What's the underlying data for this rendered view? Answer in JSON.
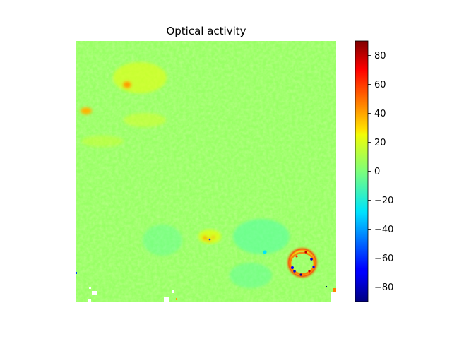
{
  "chart_data": {
    "type": "heatmap",
    "title": "Optical activity",
    "xlabel": "",
    "ylabel": "",
    "axes_visible": false,
    "colormap": "jet",
    "colorbar": {
      "vmin": -90,
      "vmax": 90,
      "ticks": [
        80,
        60,
        40,
        20,
        0,
        -20,
        -40,
        -60,
        -80
      ],
      "tick_labels": [
        "80",
        "60",
        "40",
        "20",
        "0",
        "−20",
        "−40",
        "−60",
        "−80"
      ]
    },
    "background_value_range": [
      0,
      20
    ],
    "features": [
      {
        "name": "upper-left band",
        "value_range": [
          10,
          40
        ]
      },
      {
        "name": "lower-right ring",
        "value_range": [
          -80,
          60
        ]
      },
      {
        "name": "lower-left dots",
        "value_range": [
          -20,
          30
        ]
      }
    ]
  },
  "colors": {
    "background": "#ffffff",
    "axes_text": "#000000"
  }
}
